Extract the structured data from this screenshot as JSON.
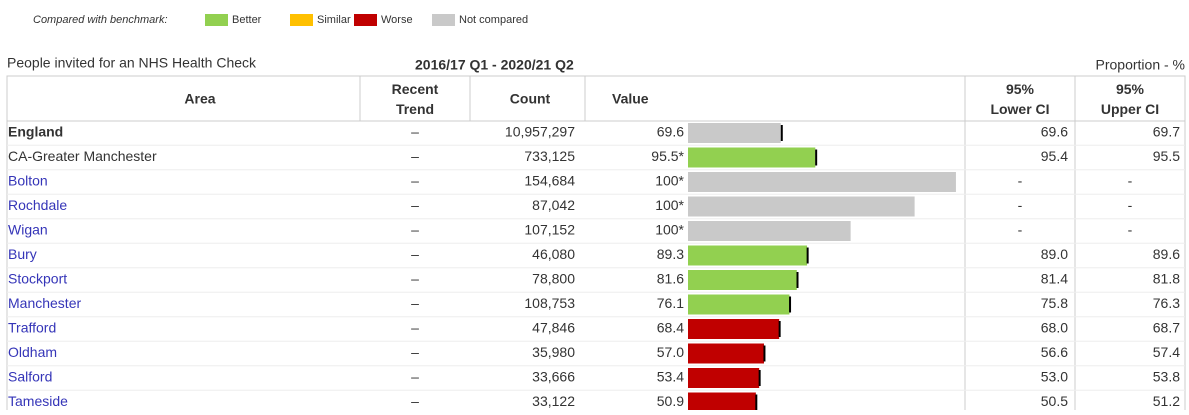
{
  "legend": {
    "caption": "Compared with benchmark:",
    "items": [
      {
        "label": "Better",
        "color": "#92d050"
      },
      {
        "label": "Similar",
        "color": "#ffc000"
      },
      {
        "label": "Worse",
        "color": "#c00000"
      },
      {
        "label": "Not compared",
        "color": "#c9c9c9"
      }
    ]
  },
  "header": {
    "title": "People invited for an NHS Health Check",
    "period": "2016/17 Q1 - 2020/21 Q2",
    "unit": "Proportion - %"
  },
  "table": {
    "columns": [
      "Area",
      "Recent Trend",
      "Count",
      "Value",
      "95% Lower CI",
      "95% Upper CI"
    ],
    "rows": [
      {
        "area": "England",
        "trend": "–",
        "count": "10,957,297",
        "value": "69.6",
        "bar": 69.6,
        "lower": "69.6",
        "upper": "69.7",
        "ci": [
          69.6,
          69.7
        ],
        "color": "#c9c9c9",
        "style": "bold"
      },
      {
        "area": "CA-Greater Manchester",
        "trend": "–",
        "count": "733,125",
        "value": "95.5*",
        "bar": 95.5,
        "lower": "95.4",
        "upper": "95.5",
        "ci": [
          95.4,
          95.5
        ],
        "color": "#92d050",
        "style": "plain"
      },
      {
        "area": "Bolton",
        "trend": "–",
        "count": "154,684",
        "value": "100*",
        "bar": 201,
        "lower": "-",
        "upper": "-",
        "color": "#c9c9c9",
        "style": "link"
      },
      {
        "area": "Rochdale",
        "trend": "–",
        "count": "87,042",
        "value": "100*",
        "bar": 170,
        "lower": "-",
        "upper": "-",
        "color": "#c9c9c9",
        "style": "link"
      },
      {
        "area": "Wigan",
        "trend": "–",
        "count": "107,152",
        "value": "100*",
        "bar": 122,
        "lower": "-",
        "upper": "-",
        "color": "#c9c9c9",
        "style": "link"
      },
      {
        "area": "Bury",
        "trend": "–",
        "count": "46,080",
        "value": "89.3",
        "bar": 89.3,
        "lower": "89.0",
        "upper": "89.6",
        "ci": [
          89.0,
          89.6
        ],
        "color": "#92d050",
        "style": "link"
      },
      {
        "area": "Stockport",
        "trend": "–",
        "count": "78,800",
        "value": "81.6",
        "bar": 81.6,
        "lower": "81.4",
        "upper": "81.8",
        "ci": [
          81.4,
          81.8
        ],
        "color": "#92d050",
        "style": "link"
      },
      {
        "area": "Manchester",
        "trend": "–",
        "count": "108,753",
        "value": "76.1",
        "bar": 76.1,
        "lower": "75.8",
        "upper": "76.3",
        "ci": [
          75.8,
          76.3
        ],
        "color": "#92d050",
        "style": "link"
      },
      {
        "area": "Trafford",
        "trend": "–",
        "count": "47,846",
        "value": "68.4",
        "bar": 68.4,
        "lower": "68.0",
        "upper": "68.7",
        "ci": [
          68.0,
          68.7
        ],
        "color": "#c00000",
        "style": "link"
      },
      {
        "area": "Oldham",
        "trend": "–",
        "count": "35,980",
        "value": "57.0",
        "bar": 57.0,
        "lower": "56.6",
        "upper": "57.4",
        "ci": [
          56.6,
          57.4
        ],
        "color": "#c00000",
        "style": "link"
      },
      {
        "area": "Salford",
        "trend": "–",
        "count": "33,666",
        "value": "53.4",
        "bar": 53.4,
        "lower": "53.0",
        "upper": "53.8",
        "ci": [
          53.0,
          53.8
        ],
        "color": "#c00000",
        "style": "link"
      },
      {
        "area": "Tameside",
        "trend": "–",
        "count": "33,122",
        "value": "50.9",
        "bar": 50.9,
        "lower": "50.5",
        "upper": "51.2",
        "ci": [
          50.5,
          51.2
        ],
        "color": "#c00000",
        "style": "link"
      }
    ]
  }
}
